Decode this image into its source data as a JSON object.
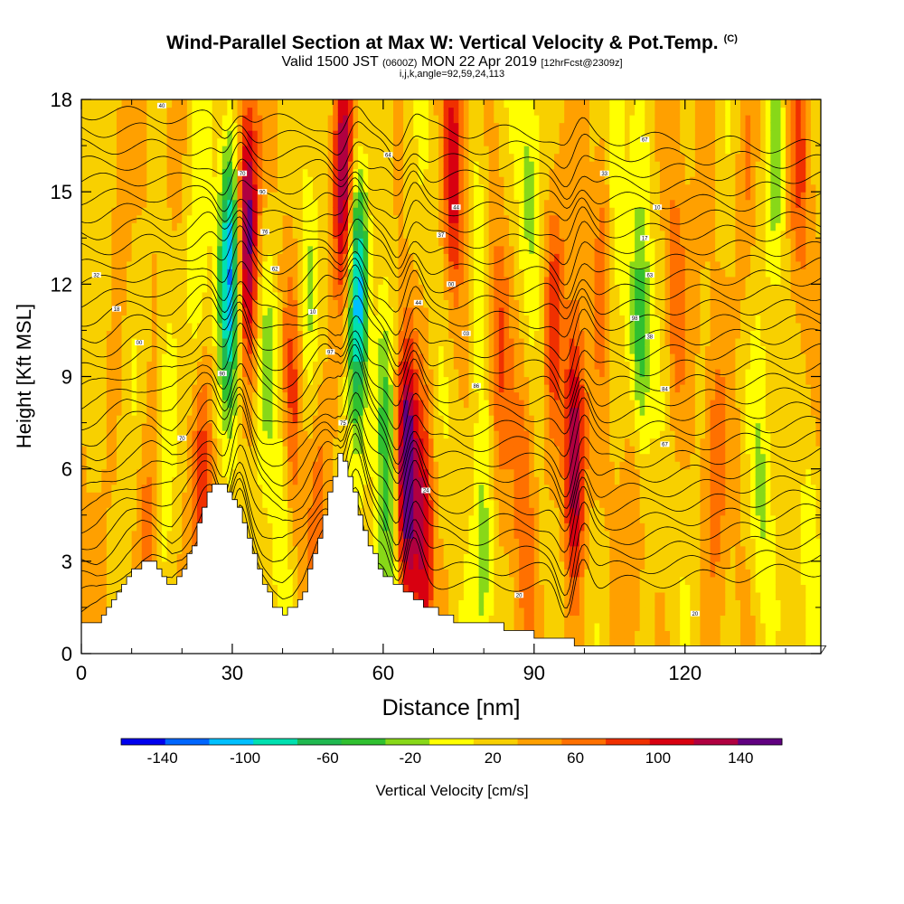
{
  "title": {
    "main": "Wind-Parallel Section at Max W: Vertical Velocity & Pot.Temp.",
    "copyright": "(C)",
    "valid_prefix": "Valid 1500 JST",
    "valid_utc": "(0600Z)",
    "valid_date": "MON 22 Apr 2019",
    "forecast": "[12hrFcst@2309z]",
    "section_info": "i,j,k,angle=92,59,24,113"
  },
  "chart_data": {
    "type": "heatmap",
    "xlabel": "Distance [nm]",
    "ylabel": "Height [Kft MSL]",
    "xlim": [
      0,
      147
    ],
    "ylim": [
      0,
      18
    ],
    "x_ticks": [
      0,
      30,
      60,
      90,
      120
    ],
    "x_minor_ticks": [
      10,
      20,
      40,
      50,
      70,
      80,
      100,
      110,
      130,
      140
    ],
    "y_ticks": [
      0,
      3,
      6,
      9,
      12,
      15,
      18
    ],
    "colorbar": {
      "label": "Vertical Velocity [cm/s]",
      "bounds": [
        -160,
        160
      ],
      "step": 20,
      "tick_labels": [
        "-140",
        "-100",
        "-60",
        "-20",
        "20",
        "60",
        "100",
        "140"
      ],
      "colors": [
        "#0000ee",
        "#0066ff",
        "#00c0ff",
        "#00e0b0",
        "#20b850",
        "#30c030",
        "#88d818",
        "#ffff00",
        "#f8d000",
        "#ffa000",
        "#ff7000",
        "#f03000",
        "#d80010",
        "#b00040",
        "#600080"
      ]
    },
    "terrain": [
      [
        0,
        1.0
      ],
      [
        3,
        1.1
      ],
      [
        6,
        1.7
      ],
      [
        9,
        2.5
      ],
      [
        12,
        2.9
      ],
      [
        14,
        2.9
      ],
      [
        16,
        2.5
      ],
      [
        18,
        2.2
      ],
      [
        20,
        2.7
      ],
      [
        22,
        3.6
      ],
      [
        24,
        4.8
      ],
      [
        26,
        5.5
      ],
      [
        28,
        5.5
      ],
      [
        30,
        5.1
      ],
      [
        32,
        4.2
      ],
      [
        34,
        3.2
      ],
      [
        36,
        2.2
      ],
      [
        38,
        1.6
      ],
      [
        40,
        1.3
      ],
      [
        42,
        1.5
      ],
      [
        44,
        2.1
      ],
      [
        46,
        3.2
      ],
      [
        48,
        4.5
      ],
      [
        50,
        5.8
      ],
      [
        51,
        6.5
      ],
      [
        53,
        5.8
      ],
      [
        55,
        4.6
      ],
      [
        57,
        3.5
      ],
      [
        59,
        2.8
      ],
      [
        61,
        2.4
      ],
      [
        64,
        2.0
      ],
      [
        68,
        1.6
      ],
      [
        72,
        1.2
      ],
      [
        76,
        0.9
      ],
      [
        82,
        0.9
      ],
      [
        86,
        0.8
      ],
      [
        90,
        0.6
      ],
      [
        94,
        0.4
      ],
      [
        100,
        0.35
      ],
      [
        147,
        0.35
      ]
    ],
    "updrafts": [
      {
        "x": 33,
        "y": 14.0,
        "w": 120
      },
      {
        "x": 52,
        "y": 15.5,
        "w": 115
      },
      {
        "x": 64.5,
        "y": 6.0,
        "w": 140
      },
      {
        "x": 98,
        "y": 6.5,
        "w": 120
      },
      {
        "x": 68,
        "y": 3.5,
        "w": 85
      },
      {
        "x": 74,
        "y": 15.5,
        "w": 80
      },
      {
        "x": 94,
        "y": 11.0,
        "w": 60
      },
      {
        "x": 24,
        "y": 5.0,
        "w": 55
      },
      {
        "x": 13,
        "y": 3.5,
        "w": 45
      },
      {
        "x": 8,
        "y": 15.0,
        "w": 30
      },
      {
        "x": 42,
        "y": 8.5,
        "w": 40
      },
      {
        "x": 47,
        "y": 5.0,
        "w": 35
      },
      {
        "x": 83,
        "y": 10.0,
        "w": 40
      },
      {
        "x": 88,
        "y": 5.5,
        "w": 40
      },
      {
        "x": 104,
        "y": 14.0,
        "w": 35
      },
      {
        "x": 110,
        "y": 5.5,
        "w": 30
      },
      {
        "x": 118,
        "y": 11.5,
        "w": 40
      },
      {
        "x": 126,
        "y": 6.0,
        "w": 35
      },
      {
        "x": 132,
        "y": 15.0,
        "w": 30
      },
      {
        "x": 143,
        "y": 16.0,
        "w": 40
      }
    ],
    "downdrafts": [
      {
        "x": 29.5,
        "y": 12.5,
        "w": -130
      },
      {
        "x": 55,
        "y": 12.0,
        "w": -125
      },
      {
        "x": 60,
        "y": 8.0,
        "w": -70
      },
      {
        "x": 62,
        "y": 3.5,
        "w": -55
      },
      {
        "x": 80,
        "y": 3.0,
        "w": -45
      },
      {
        "x": 79,
        "y": 13.0,
        "w": -40
      },
      {
        "x": 89,
        "y": 15.5,
        "w": -40
      },
      {
        "x": 111,
        "y": 10.0,
        "w": -80
      },
      {
        "x": 106,
        "y": 16.0,
        "w": -45
      },
      {
        "x": 138,
        "y": 16.0,
        "w": -50
      },
      {
        "x": 23,
        "y": 12.0,
        "w": -40
      },
      {
        "x": 17,
        "y": 8.0,
        "w": -35
      },
      {
        "x": 37,
        "y": 10.0,
        "w": -40
      },
      {
        "x": 45,
        "y": 12.0,
        "w": -35
      },
      {
        "x": 40,
        "y": 4.5,
        "w": -35
      },
      {
        "x": 135,
        "y": 5.0,
        "w": -35
      },
      {
        "x": 145,
        "y": 4.0,
        "w": -30
      }
    ],
    "theta_contours": {
      "levels": 30,
      "bottom_height": 0.8,
      "top_height": 17.6,
      "wave_centers_nm": [
        30,
        53,
        64.5,
        98
      ]
    },
    "contour_labels": [
      {
        "x": 16,
        "y": 17.8,
        "text": "40"
      },
      {
        "x": 3,
        "y": 12.3,
        "text": "32"
      },
      {
        "x": 7,
        "y": 11.2,
        "text": "18"
      },
      {
        "x": 11.5,
        "y": 10.1,
        "text": "00"
      },
      {
        "x": 32,
        "y": 15.6,
        "text": "70"
      },
      {
        "x": 36,
        "y": 15.0,
        "text": "90"
      },
      {
        "x": 36.5,
        "y": 13.7,
        "text": "76"
      },
      {
        "x": 38.5,
        "y": 12.5,
        "text": "62"
      },
      {
        "x": 46,
        "y": 11.1,
        "text": "10"
      },
      {
        "x": 49.5,
        "y": 9.8,
        "text": "97"
      },
      {
        "x": 28,
        "y": 9.1,
        "text": "90"
      },
      {
        "x": 20,
        "y": 7.0,
        "text": "70"
      },
      {
        "x": 52,
        "y": 7.5,
        "text": "75"
      },
      {
        "x": 61,
        "y": 16.2,
        "text": "64"
      },
      {
        "x": 74.5,
        "y": 14.5,
        "text": "44"
      },
      {
        "x": 71.5,
        "y": 13.6,
        "text": "37"
      },
      {
        "x": 73.5,
        "y": 12.0,
        "text": "00"
      },
      {
        "x": 67,
        "y": 11.4,
        "text": "44"
      },
      {
        "x": 76.5,
        "y": 10.4,
        "text": "03"
      },
      {
        "x": 78.5,
        "y": 8.7,
        "text": "86"
      },
      {
        "x": 68.5,
        "y": 5.3,
        "text": "24"
      },
      {
        "x": 87,
        "y": 1.9,
        "text": "20"
      },
      {
        "x": 112,
        "y": 16.7,
        "text": "67"
      },
      {
        "x": 104,
        "y": 15.6,
        "text": "33"
      },
      {
        "x": 114.5,
        "y": 14.5,
        "text": "10"
      },
      {
        "x": 112,
        "y": 13.5,
        "text": "17"
      },
      {
        "x": 113,
        "y": 12.3,
        "text": "63"
      },
      {
        "x": 110,
        "y": 10.9,
        "text": "98"
      },
      {
        "x": 113,
        "y": 10.3,
        "text": "38"
      },
      {
        "x": 116,
        "y": 8.6,
        "text": "84"
      },
      {
        "x": 116,
        "y": 6.8,
        "text": "67"
      },
      {
        "x": 122,
        "y": 1.3,
        "text": "20"
      }
    ]
  }
}
